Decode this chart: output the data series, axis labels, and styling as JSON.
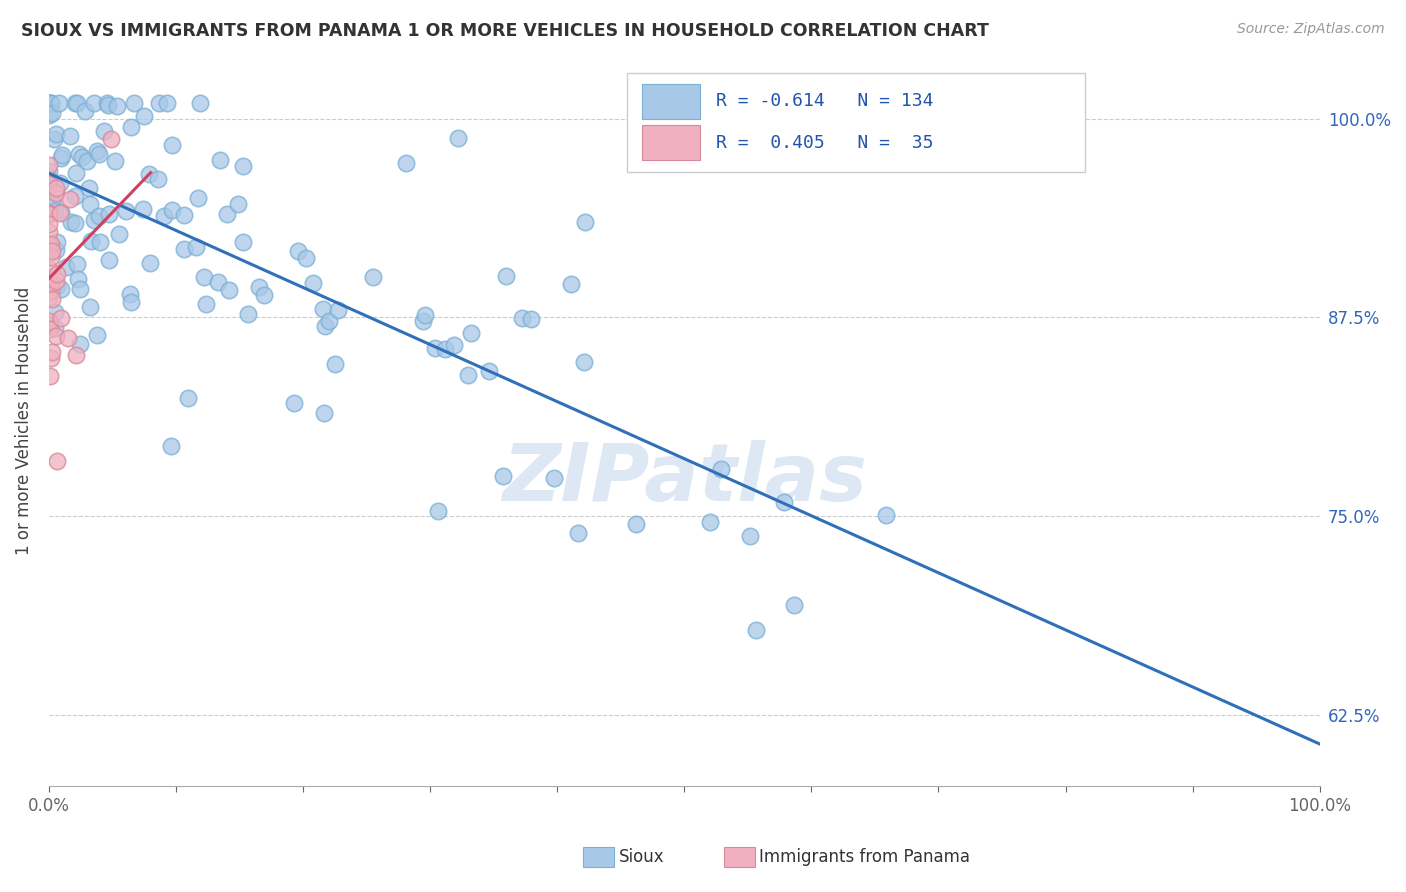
{
  "title": "SIOUX VS IMMIGRANTS FROM PANAMA 1 OR MORE VEHICLES IN HOUSEHOLD CORRELATION CHART",
  "source": "Source: ZipAtlas.com",
  "ylabel": "1 or more Vehicles in Household",
  "ytick_labels": [
    "100.0%",
    "87.5%",
    "75.0%",
    "62.5%"
  ],
  "ytick_values": [
    1.0,
    0.875,
    0.75,
    0.625
  ],
  "legend_label1": "Sioux",
  "legend_label2": "Immigrants from Panama",
  "R_blue": -0.614,
  "N_blue": 134,
  "R_pink": 0.405,
  "N_pink": 35,
  "blue_color": "#a8c8e8",
  "blue_edge": "#7ab0d4",
  "pink_color": "#f0b0c0",
  "pink_edge": "#d88898",
  "trendline_blue_color": "#3070b8",
  "trendline_pink_color": "#d04060",
  "watermark": "ZIPatlas",
  "watermark_color": "#d0dff0",
  "xlim": [
    0.0,
    1.0
  ],
  "ylim": [
    0.58,
    1.04
  ]
}
